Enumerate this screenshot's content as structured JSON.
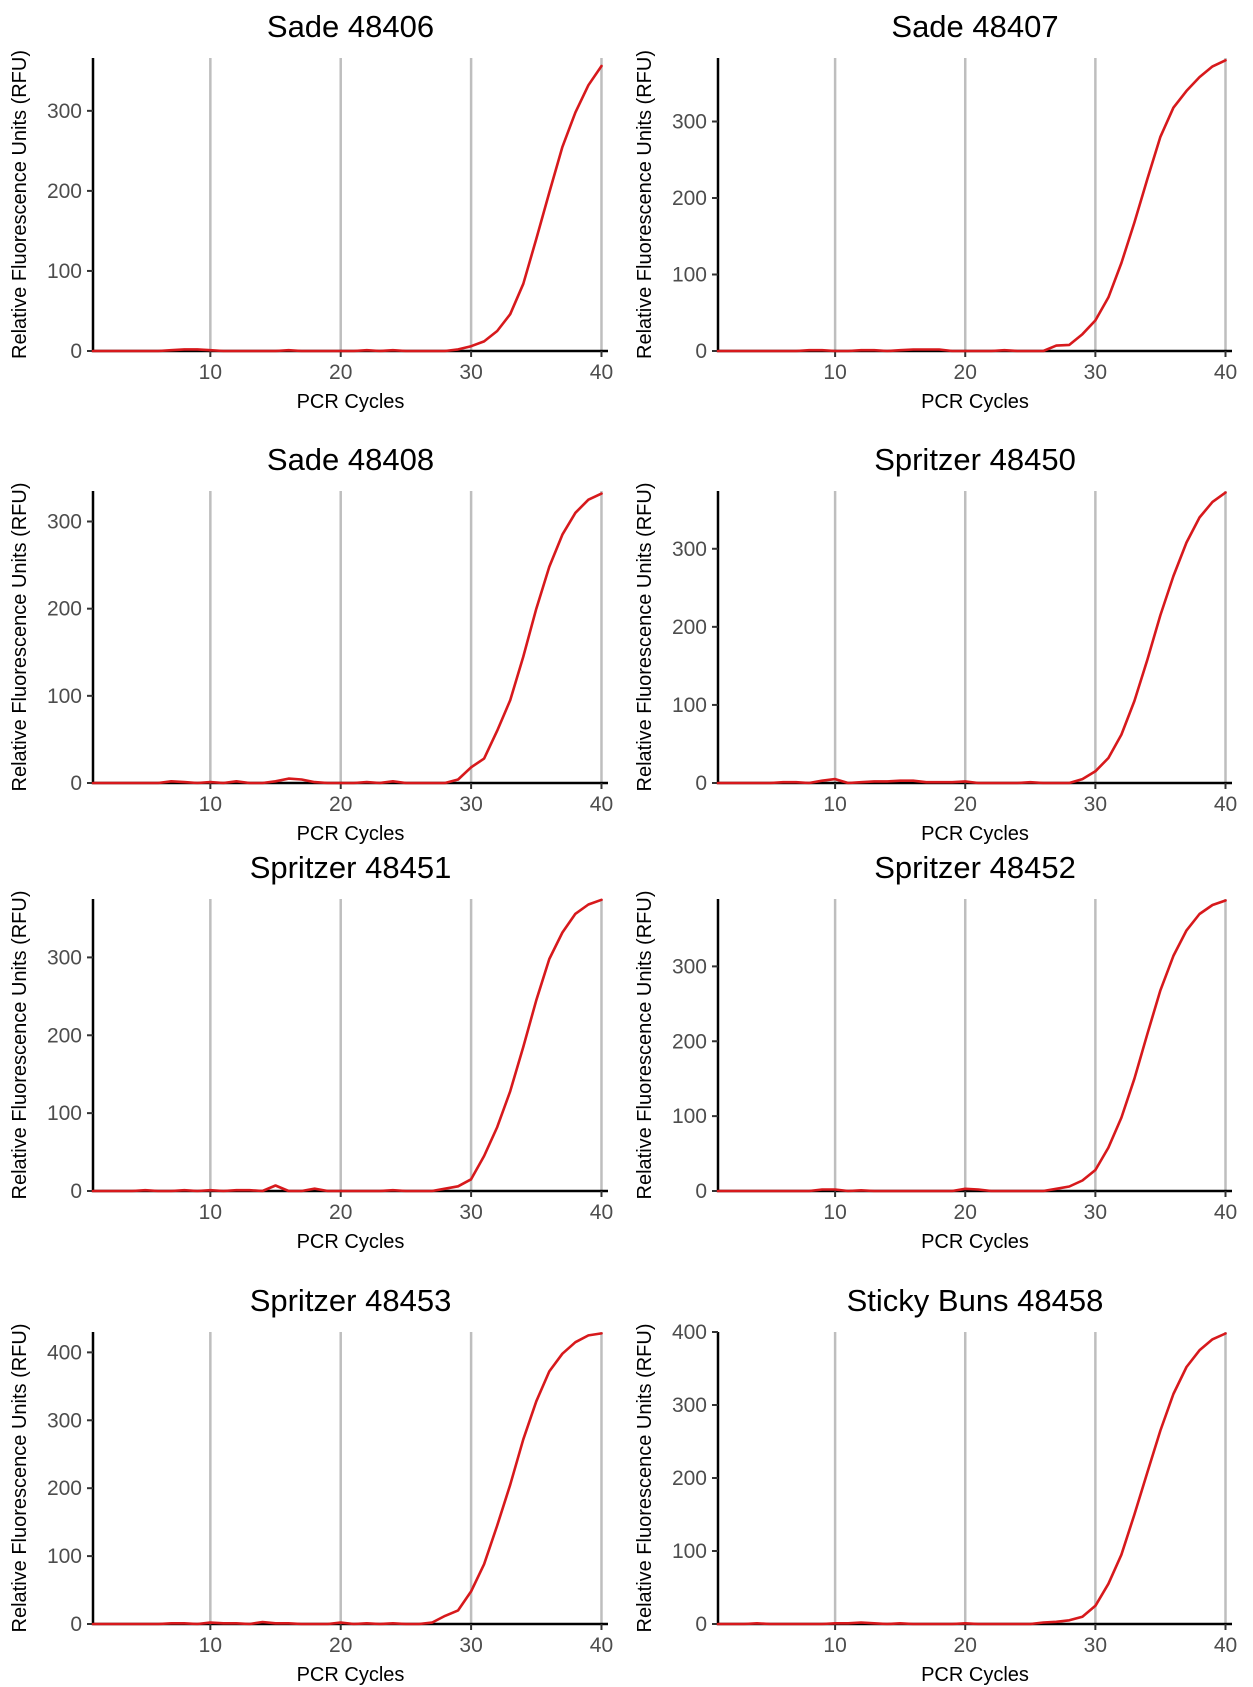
{
  "chart_data": [
    {
      "type": "line",
      "title": "Sade 48406",
      "xlabel": "PCR Cycles",
      "ylabel": "Relative Fluorescence Units (RFU)",
      "xlim": [
        1,
        40.5
      ],
      "ylim": [
        0,
        366
      ],
      "xticks": [
        10,
        20,
        30,
        40
      ],
      "yticks": [
        0,
        100,
        200,
        300
      ],
      "gridlines_x": [
        10,
        20,
        30,
        40
      ],
      "series": [
        {
          "color": "#d7191c",
          "x": [
            1,
            2,
            3,
            4,
            5,
            6,
            7,
            8,
            9,
            10,
            11,
            12,
            13,
            14,
            15,
            16,
            17,
            18,
            19,
            20,
            21,
            22,
            23,
            24,
            25,
            26,
            27,
            28,
            29,
            30,
            31,
            32,
            33,
            34,
            35,
            36,
            37,
            38,
            39,
            40
          ],
          "y": [
            0,
            0,
            0,
            0,
            0,
            0,
            1,
            2,
            2,
            1,
            0,
            0,
            0,
            0,
            0,
            1,
            0,
            0,
            0,
            0,
            0,
            1,
            0,
            1,
            0,
            0,
            0,
            0,
            2,
            6,
            12,
            25,
            46,
            84,
            140,
            198,
            255,
            298,
            332,
            356
          ]
        }
      ]
    },
    {
      "type": "line",
      "title": "Sade 48407",
      "xlabel": "PCR Cycles",
      "ylabel": "Relative Fluorescence Units (RFU)",
      "xlim": [
        1,
        40.5
      ],
      "ylim": [
        0,
        383
      ],
      "xticks": [
        10,
        20,
        30,
        40
      ],
      "yticks": [
        0,
        100,
        200,
        300
      ],
      "gridlines_x": [
        10,
        20,
        30,
        40
      ],
      "series": [
        {
          "color": "#d7191c",
          "x": [
            1,
            2,
            3,
            4,
            5,
            6,
            7,
            8,
            9,
            10,
            11,
            12,
            13,
            14,
            15,
            16,
            17,
            18,
            19,
            20,
            21,
            22,
            23,
            24,
            25,
            26,
            27,
            28,
            29,
            30,
            31,
            32,
            33,
            34,
            35,
            36,
            37,
            38,
            39,
            40
          ],
          "y": [
            0,
            0,
            0,
            0,
            0,
            0,
            0,
            1,
            1,
            0,
            0,
            1,
            1,
            0,
            1,
            2,
            2,
            2,
            0,
            0,
            0,
            0,
            1,
            0,
            0,
            0,
            7,
            8,
            22,
            40,
            70,
            115,
            168,
            225,
            280,
            318,
            340,
            358,
            372,
            380
          ]
        }
      ]
    },
    {
      "type": "line",
      "title": "Sade 48408",
      "xlabel": "PCR Cycles",
      "ylabel": "Relative Fluorescence Units (RFU)",
      "xlim": [
        1,
        40.5
      ],
      "ylim": [
        0,
        335
      ],
      "xticks": [
        10,
        20,
        30,
        40
      ],
      "yticks": [
        0,
        100,
        200,
        300
      ],
      "gridlines_x": [
        10,
        20,
        30,
        40
      ],
      "series": [
        {
          "color": "#d7191c",
          "x": [
            1,
            2,
            3,
            4,
            5,
            6,
            7,
            8,
            9,
            10,
            11,
            12,
            13,
            14,
            15,
            16,
            17,
            18,
            19,
            20,
            21,
            22,
            23,
            24,
            25,
            26,
            27,
            28,
            29,
            30,
            31,
            32,
            33,
            34,
            35,
            36,
            37,
            38,
            39,
            40
          ],
          "y": [
            0,
            0,
            0,
            0,
            0,
            0,
            2,
            1,
            0,
            1,
            0,
            2,
            0,
            0,
            2,
            5,
            4,
            1,
            0,
            0,
            0,
            1,
            0,
            2,
            0,
            0,
            0,
            0,
            4,
            18,
            28,
            60,
            95,
            145,
            200,
            248,
            285,
            310,
            325,
            332
          ]
        }
      ]
    },
    {
      "type": "line",
      "title": "Spritzer 48450",
      "xlabel": "PCR Cycles",
      "ylabel": "Relative Fluorescence Units (RFU)",
      "xlim": [
        1,
        40.5
      ],
      "ylim": [
        0,
        374
      ],
      "xticks": [
        10,
        20,
        30,
        40
      ],
      "yticks": [
        0,
        100,
        200,
        300
      ],
      "gridlines_x": [
        10,
        20,
        30,
        40
      ],
      "series": [
        {
          "color": "#d7191c",
          "x": [
            1,
            2,
            3,
            4,
            5,
            6,
            7,
            8,
            9,
            10,
            11,
            12,
            13,
            14,
            15,
            16,
            17,
            18,
            19,
            20,
            21,
            22,
            23,
            24,
            25,
            26,
            27,
            28,
            29,
            30,
            31,
            32,
            33,
            34,
            35,
            36,
            37,
            38,
            39,
            40
          ],
          "y": [
            0,
            0,
            0,
            0,
            0,
            1,
            1,
            0,
            3,
            5,
            0,
            1,
            2,
            2,
            3,
            3,
            1,
            1,
            1,
            2,
            0,
            0,
            0,
            0,
            1,
            0,
            0,
            0,
            5,
            15,
            32,
            62,
            105,
            158,
            215,
            265,
            308,
            340,
            360,
            372
          ]
        }
      ]
    },
    {
      "type": "line",
      "title": "Spritzer 48451",
      "xlabel": "PCR Cycles",
      "ylabel": "Relative Fluorescence Units (RFU)",
      "xlim": [
        1,
        40.5
      ],
      "ylim": [
        0,
        375
      ],
      "xticks": [
        10,
        20,
        30,
        40
      ],
      "yticks": [
        0,
        100,
        200,
        300
      ],
      "gridlines_x": [
        10,
        20,
        30,
        40
      ],
      "series": [
        {
          "color": "#d7191c",
          "x": [
            1,
            2,
            3,
            4,
            5,
            6,
            7,
            8,
            9,
            10,
            11,
            12,
            13,
            14,
            15,
            16,
            17,
            18,
            19,
            20,
            21,
            22,
            23,
            24,
            25,
            26,
            27,
            28,
            29,
            30,
            31,
            32,
            33,
            34,
            35,
            36,
            37,
            38,
            39,
            40
          ],
          "y": [
            0,
            0,
            0,
            0,
            1,
            0,
            0,
            1,
            0,
            1,
            0,
            1,
            1,
            0,
            7,
            0,
            0,
            3,
            0,
            0,
            0,
            0,
            0,
            1,
            0,
            0,
            0,
            3,
            6,
            15,
            45,
            82,
            128,
            185,
            245,
            298,
            332,
            356,
            368,
            374
          ]
        }
      ]
    },
    {
      "type": "line",
      "title": "Spritzer 48452",
      "xlabel": "PCR Cycles",
      "ylabel": "Relative Fluorescence Units (RFU)",
      "xlim": [
        1,
        40.5
      ],
      "ylim": [
        0,
        390
      ],
      "xticks": [
        10,
        20,
        30,
        40
      ],
      "yticks": [
        0,
        100,
        200,
        300
      ],
      "gridlines_x": [
        10,
        20,
        30,
        40
      ],
      "series": [
        {
          "color": "#d7191c",
          "x": [
            1,
            2,
            3,
            4,
            5,
            6,
            7,
            8,
            9,
            10,
            11,
            12,
            13,
            14,
            15,
            16,
            17,
            18,
            19,
            20,
            21,
            22,
            23,
            24,
            25,
            26,
            27,
            28,
            29,
            30,
            31,
            32,
            33,
            34,
            35,
            36,
            37,
            38,
            39,
            40
          ],
          "y": [
            0,
            0,
            0,
            0,
            0,
            0,
            0,
            0,
            2,
            2,
            0,
            1,
            0,
            0,
            0,
            0,
            0,
            0,
            0,
            3,
            2,
            0,
            0,
            0,
            0,
            0,
            3,
            6,
            14,
            28,
            58,
            98,
            150,
            210,
            268,
            314,
            348,
            370,
            382,
            388
          ]
        }
      ]
    },
    {
      "type": "line",
      "title": "Spritzer 48453",
      "xlabel": "PCR Cycles",
      "ylabel": "Relative Fluorescence Units (RFU)",
      "xlim": [
        1,
        40.5
      ],
      "ylim": [
        0,
        430
      ],
      "xticks": [
        10,
        20,
        30,
        40
      ],
      "yticks": [
        0,
        100,
        200,
        300,
        400
      ],
      "gridlines_x": [
        10,
        20,
        30,
        40
      ],
      "series": [
        {
          "color": "#d7191c",
          "x": [
            1,
            2,
            3,
            4,
            5,
            6,
            7,
            8,
            9,
            10,
            11,
            12,
            13,
            14,
            15,
            16,
            17,
            18,
            19,
            20,
            21,
            22,
            23,
            24,
            25,
            26,
            27,
            28,
            29,
            30,
            31,
            32,
            33,
            34,
            35,
            36,
            37,
            38,
            39,
            40
          ],
          "y": [
            0,
            0,
            0,
            0,
            0,
            0,
            1,
            1,
            0,
            2,
            1,
            1,
            0,
            3,
            1,
            1,
            0,
            0,
            0,
            2,
            0,
            1,
            0,
            1,
            0,
            0,
            2,
            12,
            20,
            48,
            88,
            145,
            205,
            272,
            328,
            372,
            398,
            415,
            425,
            428
          ]
        }
      ]
    },
    {
      "type": "line",
      "title": "Sticky Buns 48458",
      "xlabel": "PCR Cycles",
      "ylabel": "Relative Fluorescence Units (RFU)",
      "xlim": [
        1,
        40.5
      ],
      "ylim": [
        0,
        400
      ],
      "xticks": [
        10,
        20,
        30,
        40
      ],
      "yticks": [
        0,
        100,
        200,
        300,
        400
      ],
      "gridlines_x": [
        10,
        20,
        30,
        40
      ],
      "series": [
        {
          "color": "#d7191c",
          "x": [
            1,
            2,
            3,
            4,
            5,
            6,
            7,
            8,
            9,
            10,
            11,
            12,
            13,
            14,
            15,
            16,
            17,
            18,
            19,
            20,
            21,
            22,
            23,
            24,
            25,
            26,
            27,
            28,
            29,
            30,
            31,
            32,
            33,
            34,
            35,
            36,
            37,
            38,
            39,
            40
          ],
          "y": [
            0,
            0,
            0,
            1,
            0,
            0,
            0,
            0,
            0,
            1,
            1,
            2,
            1,
            0,
            1,
            0,
            0,
            0,
            0,
            1,
            0,
            0,
            0,
            0,
            0,
            2,
            3,
            5,
            10,
            25,
            55,
            95,
            150,
            208,
            265,
            315,
            352,
            375,
            390,
            398
          ]
        }
      ]
    }
  ]
}
